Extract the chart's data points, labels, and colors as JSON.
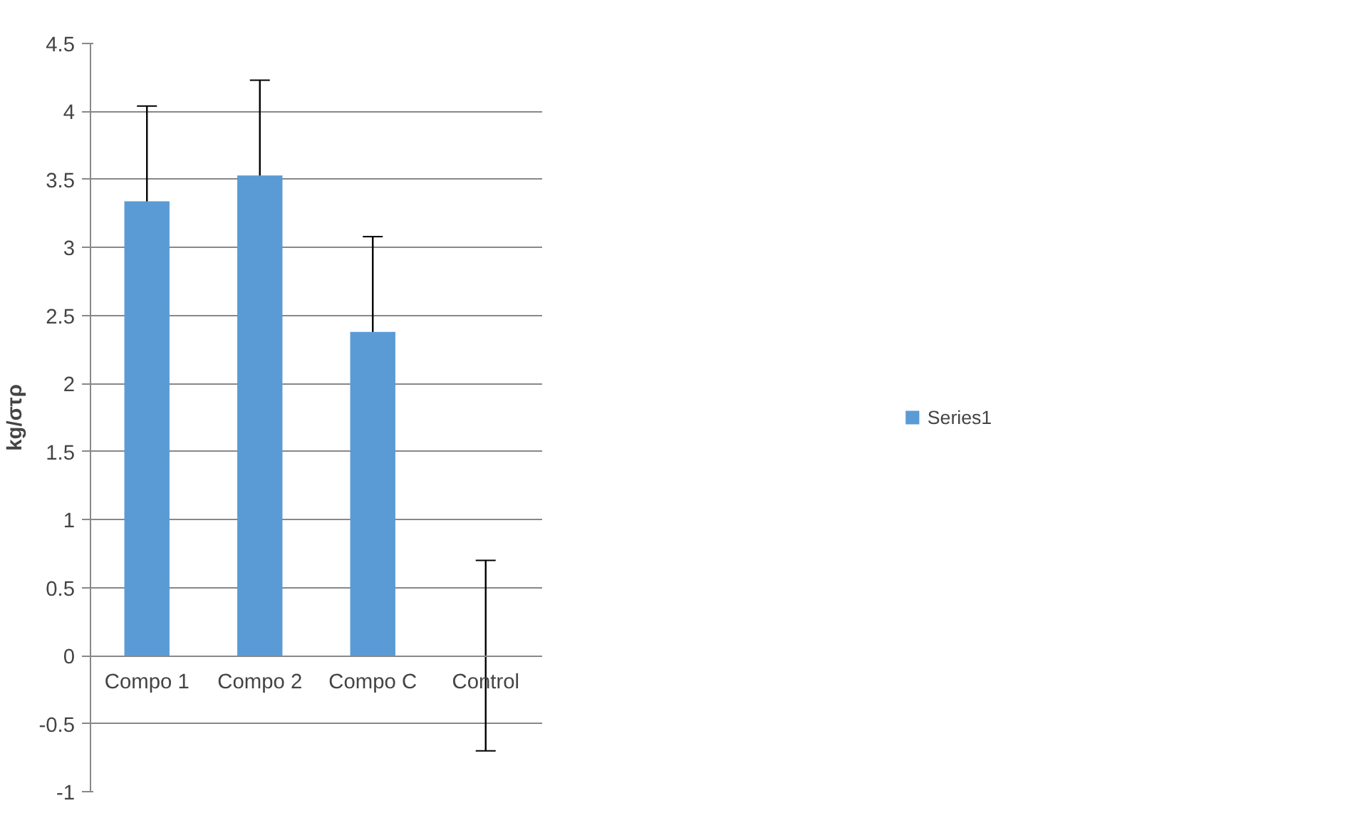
{
  "chart_data": {
    "type": "bar",
    "ylabel": "kg/στρ",
    "categories": [
      "Compo 1",
      "Compo 2",
      "Compo C",
      "Control"
    ],
    "series": [
      {
        "name": "Series1",
        "color": "#5b9bd5",
        "values": [
          3.34,
          3.53,
          2.38,
          0
        ],
        "errors": [
          0.7,
          0.7,
          0.7,
          0.7
        ]
      }
    ],
    "ylim": [
      -1,
      4.5
    ],
    "yticks": [
      -1,
      -0.5,
      0,
      0.5,
      1,
      1.5,
      2,
      2.5,
      3,
      3.5,
      4,
      4.5
    ],
    "grid": "y",
    "legend": "right"
  }
}
